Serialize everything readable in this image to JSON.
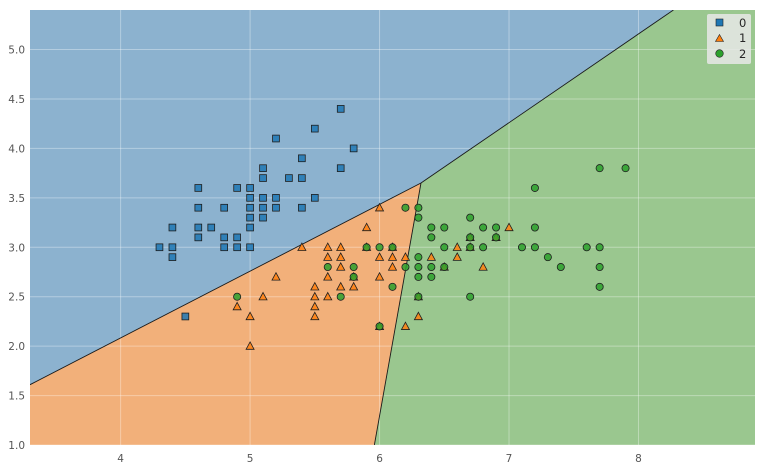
{
  "chart_data": {
    "type": "scatter",
    "title": "",
    "xlabel": "",
    "ylabel": "",
    "xlim": [
      3.3,
      8.9
    ],
    "ylim": [
      1.0,
      5.4
    ],
    "xticks": [
      4,
      5,
      6,
      7,
      8
    ],
    "yticks": [
      1.0,
      1.5,
      2.0,
      2.5,
      3.0,
      3.5,
      4.0,
      4.5,
      5.0
    ],
    "grid": true,
    "legend_position": "top-right",
    "decision_regions": {
      "vertex": [
        6.32,
        3.65
      ],
      "boundary_blue_orange": [
        [
          3.3,
          1.61
        ],
        [
          6.32,
          3.65
        ]
      ],
      "boundary_blue_green": [
        [
          6.32,
          3.65
        ],
        [
          8.27,
          5.4
        ]
      ],
      "boundary_orange_green": [
        [
          6.32,
          3.65
        ],
        [
          5.96,
          1.0
        ]
      ]
    },
    "series": [
      {
        "name": "0",
        "marker": "square",
        "color": "#1f77b4",
        "region_color": "#8cb2cf",
        "points": [
          [
            4.3,
            3.0
          ],
          [
            4.4,
            3.0
          ],
          [
            4.4,
            3.2
          ],
          [
            4.4,
            2.9
          ],
          [
            4.5,
            2.3
          ],
          [
            4.6,
            3.6
          ],
          [
            4.6,
            3.4
          ],
          [
            4.6,
            3.2
          ],
          [
            4.6,
            3.1
          ],
          [
            4.7,
            3.2
          ],
          [
            4.8,
            3.4
          ],
          [
            4.8,
            3.1
          ],
          [
            4.8,
            3.0
          ],
          [
            4.9,
            3.6
          ],
          [
            4.9,
            3.1
          ],
          [
            4.9,
            3.0
          ],
          [
            5.0,
            3.6
          ],
          [
            5.0,
            3.5
          ],
          [
            5.0,
            3.4
          ],
          [
            5.0,
            3.3
          ],
          [
            5.0,
            3.2
          ],
          [
            5.0,
            3.0
          ],
          [
            5.1,
            3.8
          ],
          [
            5.1,
            3.7
          ],
          [
            5.1,
            3.5
          ],
          [
            5.1,
            3.4
          ],
          [
            5.1,
            3.3
          ],
          [
            5.2,
            4.1
          ],
          [
            5.2,
            3.5
          ],
          [
            5.2,
            3.4
          ],
          [
            5.3,
            3.7
          ],
          [
            5.4,
            3.9
          ],
          [
            5.4,
            3.7
          ],
          [
            5.4,
            3.4
          ],
          [
            5.5,
            4.2
          ],
          [
            5.5,
            3.5
          ],
          [
            5.7,
            4.4
          ],
          [
            5.7,
            3.8
          ],
          [
            5.8,
            4.0
          ]
        ]
      },
      {
        "name": "1",
        "marker": "triangle",
        "color": "#ff7f0e",
        "region_color": "#f2b07a",
        "points": [
          [
            4.9,
            2.4
          ],
          [
            5.0,
            2.3
          ],
          [
            5.0,
            2.0
          ],
          [
            5.1,
            2.5
          ],
          [
            5.2,
            2.7
          ],
          [
            5.4,
            3.0
          ],
          [
            5.5,
            2.6
          ],
          [
            5.5,
            2.5
          ],
          [
            5.5,
            2.4
          ],
          [
            5.5,
            2.3
          ],
          [
            5.6,
            3.0
          ],
          [
            5.6,
            2.9
          ],
          [
            5.6,
            2.7
          ],
          [
            5.6,
            2.5
          ],
          [
            5.7,
            3.0
          ],
          [
            5.7,
            2.9
          ],
          [
            5.7,
            2.8
          ],
          [
            5.7,
            2.6
          ],
          [
            5.8,
            2.7
          ],
          [
            5.8,
            2.6
          ],
          [
            5.9,
            3.2
          ],
          [
            5.9,
            3.0
          ],
          [
            6.0,
            3.4
          ],
          [
            6.0,
            2.9
          ],
          [
            6.0,
            2.7
          ],
          [
            6.0,
            2.2
          ],
          [
            6.1,
            3.0
          ],
          [
            6.1,
            2.9
          ],
          [
            6.1,
            2.8
          ],
          [
            6.2,
            2.9
          ],
          [
            6.2,
            2.2
          ],
          [
            6.3,
            2.5
          ],
          [
            6.3,
            2.3
          ],
          [
            6.4,
            2.9
          ],
          [
            6.5,
            2.8
          ],
          [
            6.6,
            3.0
          ],
          [
            6.6,
            2.9
          ],
          [
            6.7,
            3.1
          ],
          [
            6.7,
            3.0
          ],
          [
            6.8,
            2.8
          ],
          [
            6.9,
            3.1
          ],
          [
            7.0,
            3.2
          ]
        ]
      },
      {
        "name": "2",
        "marker": "circle",
        "color": "#2ca02c",
        "region_color": "#9ac78f",
        "points": [
          [
            4.9,
            2.5
          ],
          [
            5.6,
            2.8
          ],
          [
            5.7,
            2.5
          ],
          [
            5.8,
            2.8
          ],
          [
            5.8,
            2.7
          ],
          [
            5.9,
            3.0
          ],
          [
            6.0,
            3.0
          ],
          [
            6.0,
            2.2
          ],
          [
            6.1,
            3.0
          ],
          [
            6.1,
            2.6
          ],
          [
            6.2,
            3.4
          ],
          [
            6.2,
            2.8
          ],
          [
            6.3,
            3.4
          ],
          [
            6.3,
            3.3
          ],
          [
            6.3,
            2.9
          ],
          [
            6.3,
            2.8
          ],
          [
            6.3,
            2.7
          ],
          [
            6.3,
            2.5
          ],
          [
            6.4,
            3.2
          ],
          [
            6.4,
            3.1
          ],
          [
            6.4,
            2.8
          ],
          [
            6.4,
            2.7
          ],
          [
            6.5,
            3.2
          ],
          [
            6.5,
            3.0
          ],
          [
            6.5,
            2.8
          ],
          [
            6.7,
            3.3
          ],
          [
            6.7,
            3.1
          ],
          [
            6.7,
            3.0
          ],
          [
            6.7,
            2.5
          ],
          [
            6.8,
            3.2
          ],
          [
            6.8,
            3.0
          ],
          [
            6.9,
            3.2
          ],
          [
            6.9,
            3.1
          ],
          [
            7.1,
            3.0
          ],
          [
            7.2,
            3.6
          ],
          [
            7.2,
            3.2
          ],
          [
            7.2,
            3.0
          ],
          [
            7.3,
            2.9
          ],
          [
            7.4,
            2.8
          ],
          [
            7.6,
            3.0
          ],
          [
            7.7,
            3.8
          ],
          [
            7.7,
            3.0
          ],
          [
            7.7,
            2.8
          ],
          [
            7.7,
            2.6
          ],
          [
            7.9,
            3.8
          ]
        ]
      }
    ]
  },
  "axes": {
    "x_tick_labels": [
      "4",
      "5",
      "6",
      "7",
      "8"
    ],
    "y_tick_labels": [
      "1.0",
      "1.5",
      "2.0",
      "2.5",
      "3.0",
      "3.5",
      "4.0",
      "4.5",
      "5.0"
    ]
  },
  "legend": {
    "labels": [
      "0",
      "1",
      "2"
    ]
  }
}
